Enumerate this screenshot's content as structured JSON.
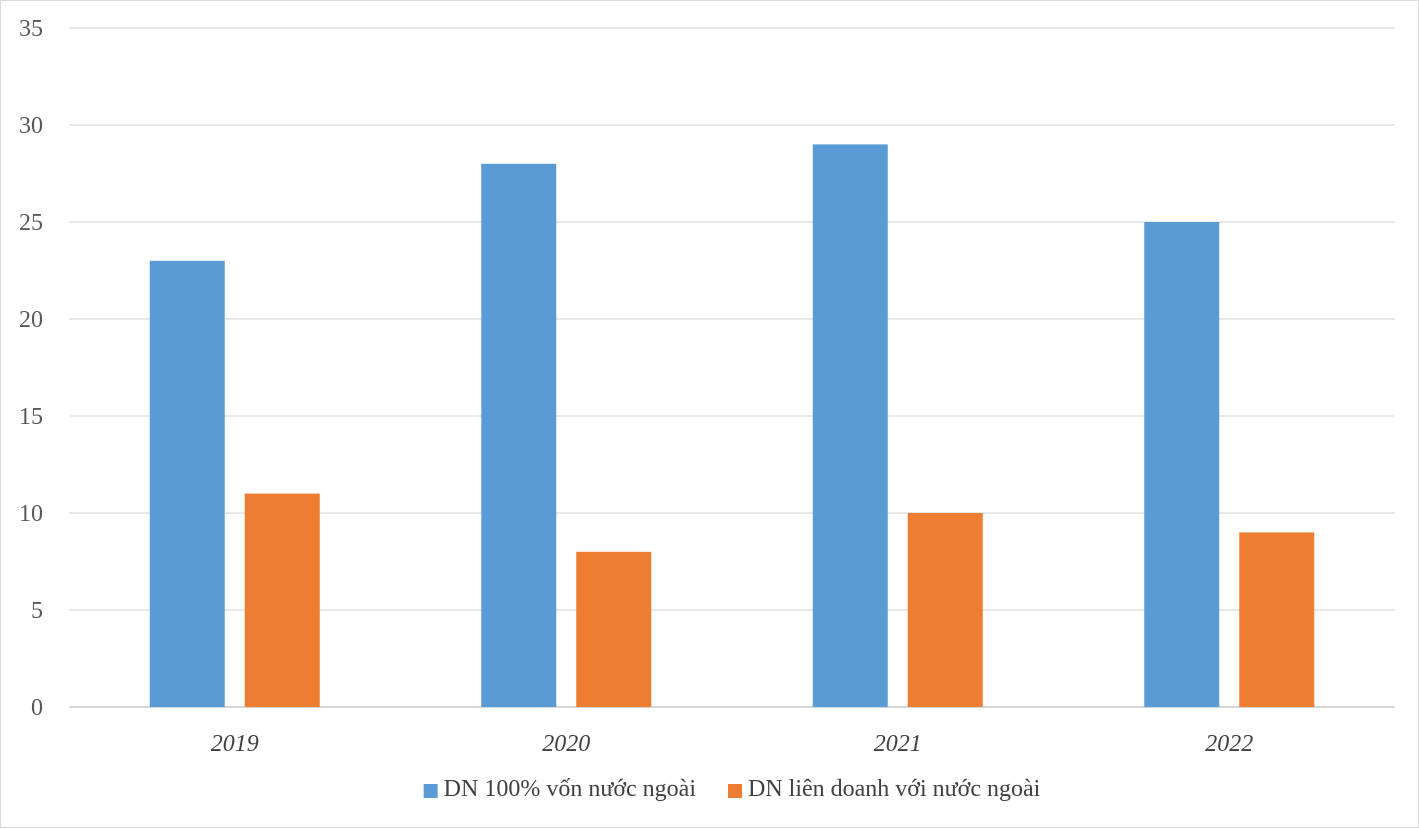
{
  "chart_data": {
    "type": "bar",
    "categories": [
      "2019",
      "2020",
      "2021",
      "2022"
    ],
    "series": [
      {
        "name": "DN 100% vốn nước ngoài",
        "values": [
          23,
          28,
          29,
          25
        ],
        "color": "#5B9BD5"
      },
      {
        "name": "DN liên doanh với nước ngoài",
        "values": [
          11,
          8,
          10,
          9
        ],
        "color": "#ED7D31"
      }
    ],
    "ylim": [
      0,
      35
    ],
    "yticks": [
      0,
      5,
      10,
      15,
      20,
      25,
      30,
      35
    ],
    "grid": true,
    "legend_position": "bottom",
    "gridline_color": "#d9d9d9",
    "axis_line_color": "#bfbfbf"
  }
}
